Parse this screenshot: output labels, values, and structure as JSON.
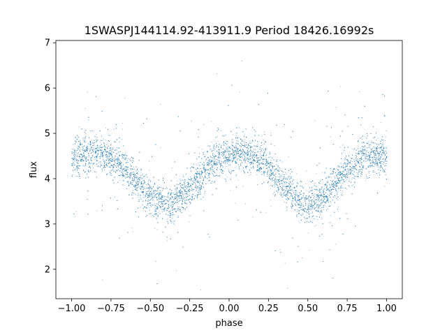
{
  "chart_data": {
    "type": "scatter",
    "title": "1SWASPJ144114.92-413911.9 Period 18426.16992s",
    "xlabel": "phase",
    "ylabel": "flux",
    "xlim": [
      -1.1,
      1.1
    ],
    "ylim": [
      1.35,
      7.05
    ],
    "xticks": [
      -1.0,
      -0.75,
      -0.5,
      -0.25,
      0.0,
      0.25,
      0.5,
      0.75,
      1.0
    ],
    "xtick_labels": [
      "−1.00",
      "−0.75",
      "−0.50",
      "−0.25",
      "0.00",
      "0.25",
      "0.50",
      "0.75",
      "1.00"
    ],
    "yticks": [
      2,
      3,
      4,
      5,
      6,
      7
    ],
    "ytick_labels": [
      "2",
      "3",
      "4",
      "5",
      "6",
      "7"
    ],
    "grid": false,
    "marker_color": "#1f77b4",
    "phase_range": [
      -1.0,
      1.0
    ],
    "series": [
      {
        "x": [
          -1.0,
          -0.95,
          -0.9,
          -0.85,
          -0.8,
          -0.75,
          -0.7,
          -0.65,
          -0.6,
          -0.55,
          -0.5,
          -0.45,
          -0.4,
          -0.35,
          -0.3,
          -0.25,
          -0.2,
          -0.15,
          -0.1,
          -0.05,
          0.0,
          0.05,
          0.1,
          0.15,
          0.2,
          0.25,
          0.3,
          0.35,
          0.4,
          0.45,
          0.5,
          0.55,
          0.6,
          0.65,
          0.7,
          0.75,
          0.8,
          0.85,
          0.9,
          0.95,
          1.0
        ],
        "y": [
          4.45,
          4.5,
          4.55,
          4.58,
          4.55,
          4.48,
          4.35,
          4.2,
          4.0,
          3.8,
          3.62,
          3.5,
          3.45,
          3.5,
          3.62,
          3.8,
          4.0,
          4.2,
          4.35,
          4.48,
          4.55,
          4.58,
          4.55,
          4.5,
          4.4,
          4.25,
          4.05,
          3.85,
          3.65,
          3.5,
          3.45,
          3.5,
          3.62,
          3.8,
          4.0,
          4.2,
          4.35,
          4.45,
          4.5,
          4.48,
          4.45
        ]
      }
    ]
  }
}
